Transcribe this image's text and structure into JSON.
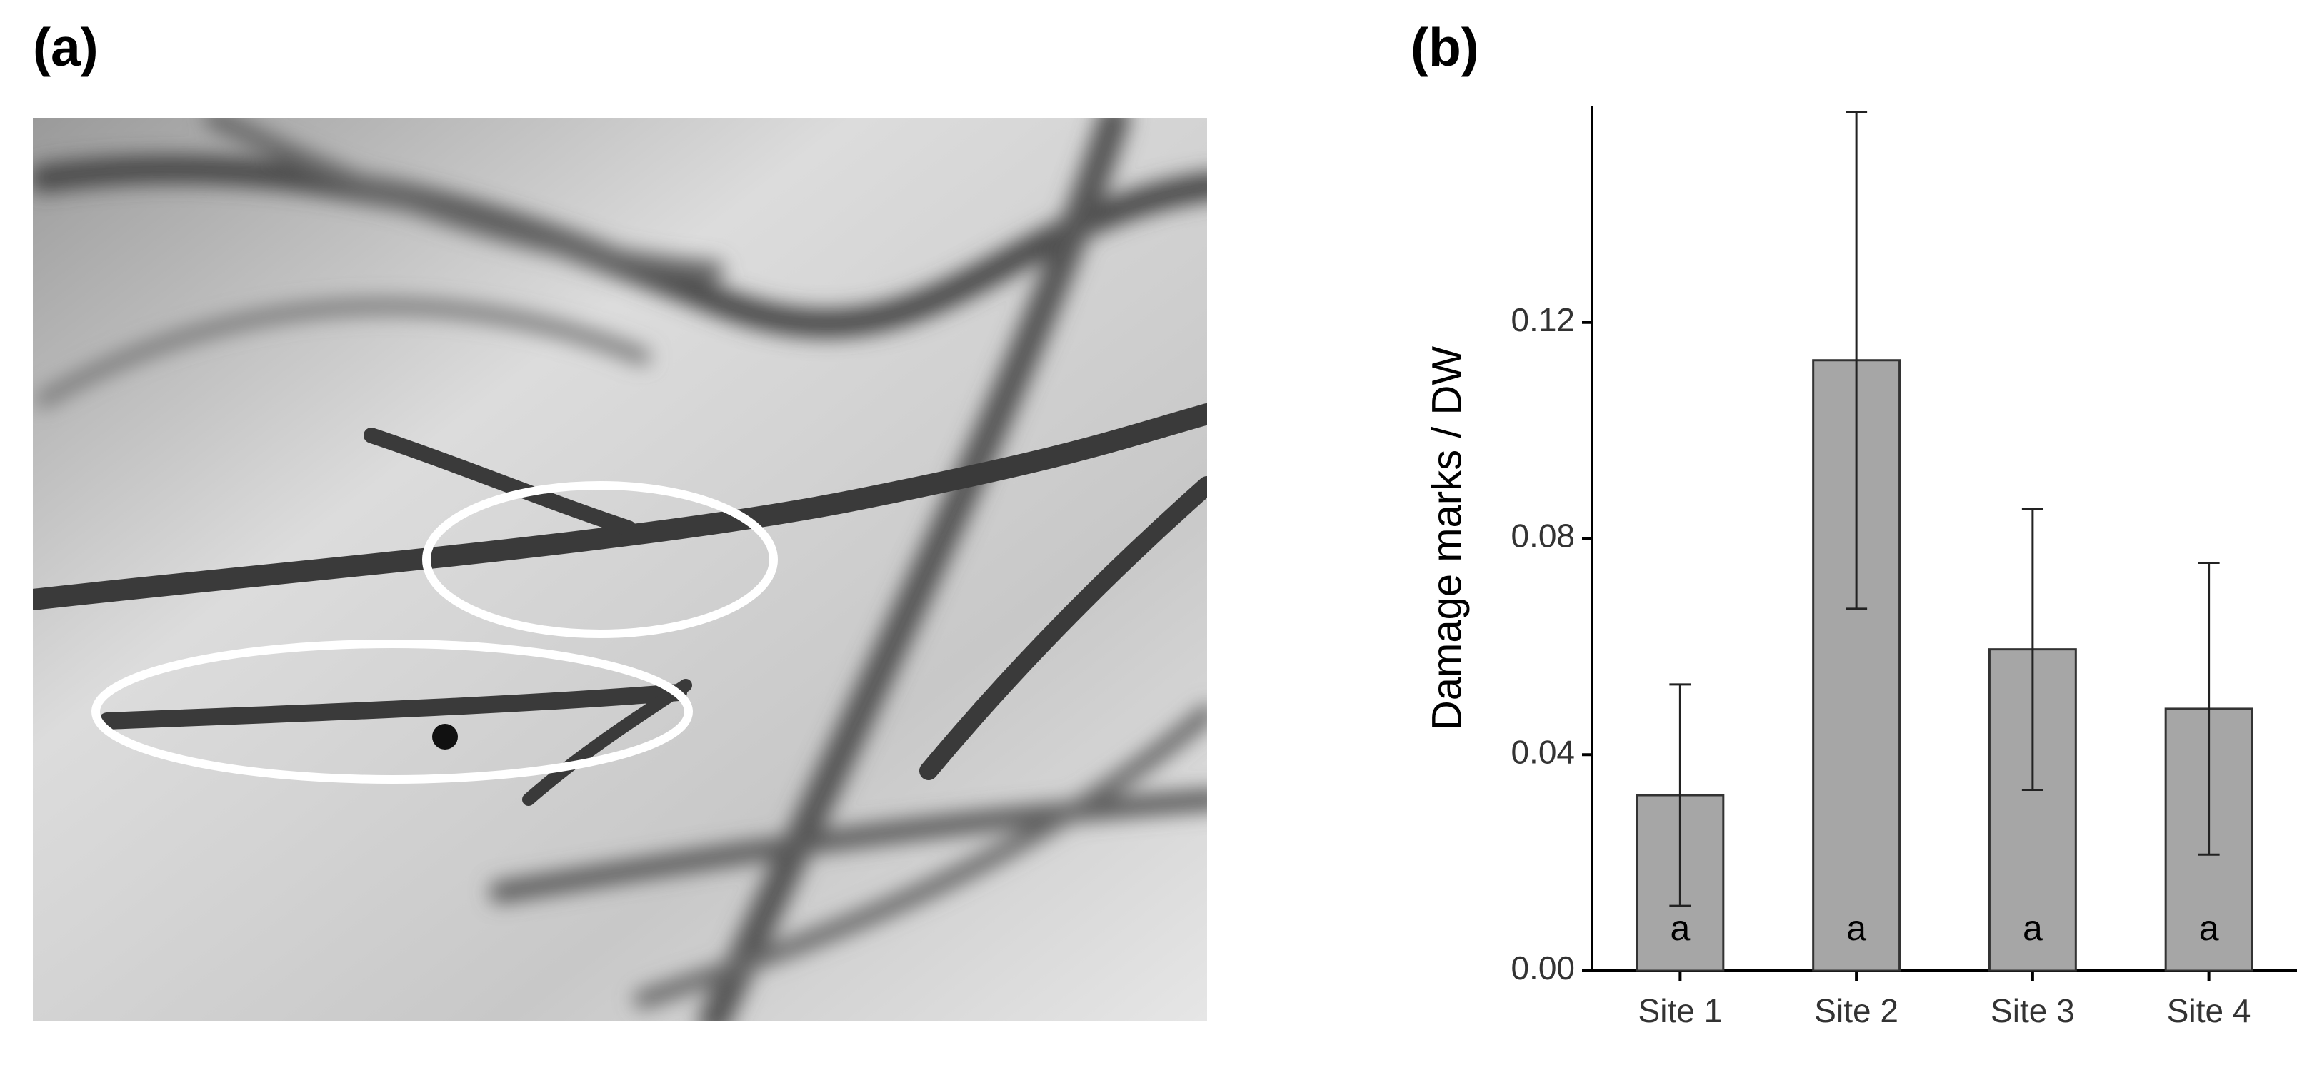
{
  "panel_labels": [
    "(a)",
    "(b)"
  ],
  "chart_data": {
    "type": "bar",
    "y_label": "Damage marks / DW",
    "categories": [
      "Site 1",
      "Site 2",
      "Site 3",
      "Site 4"
    ],
    "values": [
      0.0325,
      0.113,
      0.0595,
      0.0485
    ],
    "errors": [
      0.0205,
      0.046,
      0.026,
      0.027
    ],
    "labels": [
      "a",
      "a",
      "a",
      "a"
    ],
    "color": "#a6a6a6",
    "ylim": [
      0,
      0.16
    ],
    "yticks": [
      {
        "value": 0,
        "label": "0.00"
      },
      0.04,
      0.08,
      0.12
    ],
    "grid": false
  }
}
